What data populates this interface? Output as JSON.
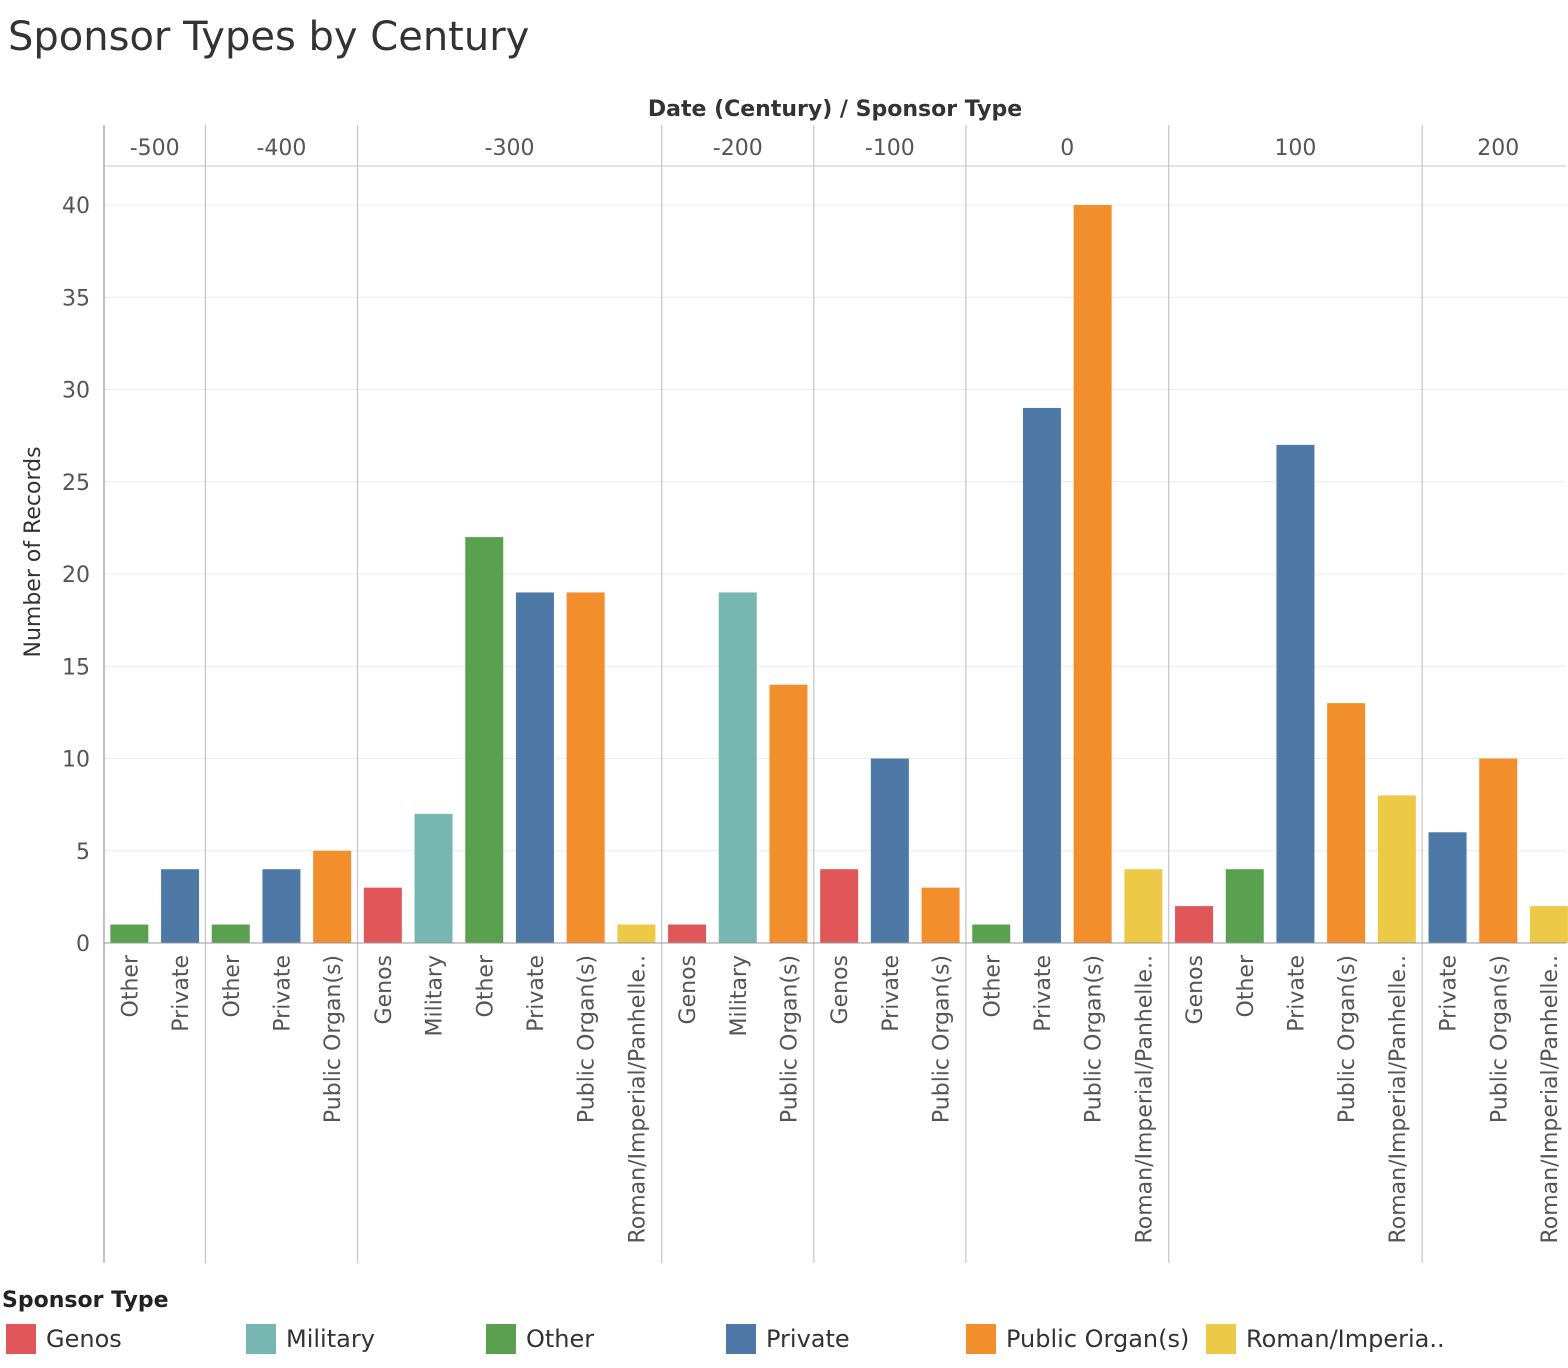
{
  "chart_data": {
    "type": "bar",
    "title": "Sponsor Types by Century",
    "header_label": "Date (Century)  /  Sponsor Type",
    "ylabel": "Number of Records",
    "ylim": [
      0,
      40
    ],
    "yticks": [
      "0",
      "5",
      "10",
      "15",
      "20",
      "25",
      "30",
      "35",
      "40"
    ],
    "grid": true,
    "legend_position": "bottom",
    "groups": [
      {
        "century": "-500",
        "bars": [
          {
            "type": "Other",
            "label": "Other",
            "value": 1
          },
          {
            "type": "Private",
            "label": "Private",
            "value": 4
          }
        ]
      },
      {
        "century": "-400",
        "bars": [
          {
            "type": "Other",
            "label": "Other",
            "value": 1
          },
          {
            "type": "Private",
            "label": "Private",
            "value": 4
          },
          {
            "type": "Public Organ(s)",
            "label": "Public Organ(s)",
            "value": 5
          }
        ]
      },
      {
        "century": "-300",
        "bars": [
          {
            "type": "Genos",
            "label": "Genos",
            "value": 3
          },
          {
            "type": "Military",
            "label": "Military",
            "value": 7
          },
          {
            "type": "Other",
            "label": "Other",
            "value": 22
          },
          {
            "type": "Private",
            "label": "Private",
            "value": 19
          },
          {
            "type": "Public Organ(s)",
            "label": "Public Organ(s)",
            "value": 19
          },
          {
            "type": "Roman/Imperial/Panhellenic",
            "label": "Roman/Imperial/Panhelle..",
            "value": 1
          }
        ]
      },
      {
        "century": "-200",
        "bars": [
          {
            "type": "Genos",
            "label": "Genos",
            "value": 1
          },
          {
            "type": "Military",
            "label": "Military",
            "value": 19
          },
          {
            "type": "Public Organ(s)",
            "label": "Public Organ(s)",
            "value": 14
          }
        ]
      },
      {
        "century": "-100",
        "bars": [
          {
            "type": "Genos",
            "label": "Genos",
            "value": 4
          },
          {
            "type": "Private",
            "label": "Private",
            "value": 10
          },
          {
            "type": "Public Organ(s)",
            "label": "Public Organ(s)",
            "value": 3
          }
        ]
      },
      {
        "century": "0",
        "bars": [
          {
            "type": "Other",
            "label": "Other",
            "value": 1
          },
          {
            "type": "Private",
            "label": "Private",
            "value": 29
          },
          {
            "type": "Public Organ(s)",
            "label": "Public Organ(s)",
            "value": 40
          },
          {
            "type": "Roman/Imperial/Panhellenic",
            "label": "Roman/Imperial/Panhelle..",
            "value": 4
          }
        ]
      },
      {
        "century": "100",
        "bars": [
          {
            "type": "Genos",
            "label": "Genos",
            "value": 2
          },
          {
            "type": "Other",
            "label": "Other",
            "value": 4
          },
          {
            "type": "Private",
            "label": "Private",
            "value": 27
          },
          {
            "type": "Public Organ(s)",
            "label": "Public Organ(s)",
            "value": 13
          },
          {
            "type": "Roman/Imperial/Panhellenic",
            "label": "Roman/Imperial/Panhelle..",
            "value": 8
          }
        ]
      },
      {
        "century": "200",
        "bars": [
          {
            "type": "Private",
            "label": "Private",
            "value": 6
          },
          {
            "type": "Public Organ(s)",
            "label": "Public Organ(s)",
            "value": 10
          },
          {
            "type": "Roman/Imperial/Panhellenic",
            "label": "Roman/Imperial/Panhelle..",
            "value": 2
          }
        ]
      }
    ],
    "colors": {
      "Genos": "#e15759",
      "Military": "#76b7b2",
      "Other": "#59a14f",
      "Private": "#4e79a7",
      "Public Organ(s)": "#f28e2b",
      "Roman/Imperial/Panhellenic": "#edc948"
    }
  },
  "legend": {
    "title": "Sponsor Type",
    "items": [
      {
        "label": "Genos",
        "color": "#e15759"
      },
      {
        "label": "Military",
        "color": "#76b7b2"
      },
      {
        "label": "Other",
        "color": "#59a14f"
      },
      {
        "label": "Private",
        "color": "#4e79a7"
      },
      {
        "label": "Public Organ(s)",
        "color": "#f28e2b"
      },
      {
        "label": "Roman/Imperia..",
        "color": "#edc948"
      }
    ]
  }
}
